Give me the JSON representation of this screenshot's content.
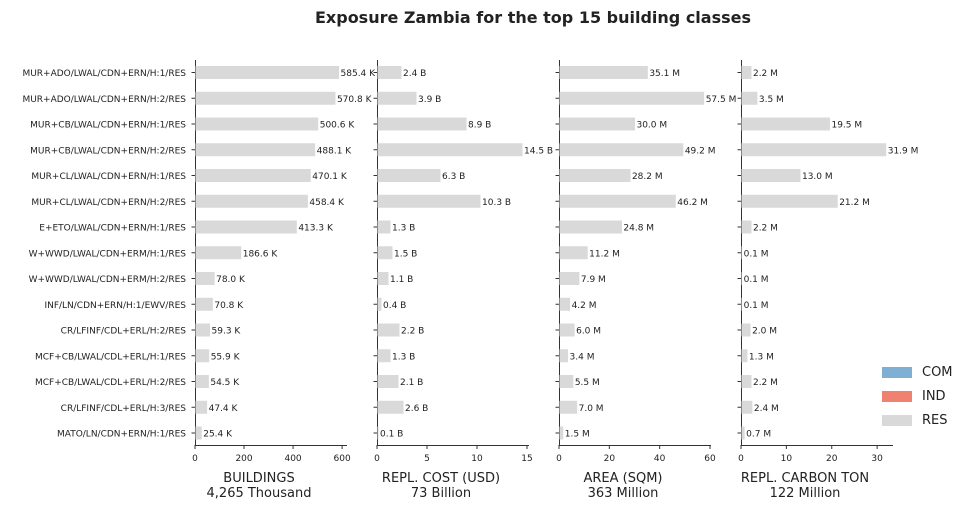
{
  "chart_data": {
    "type": "bar",
    "orientation": "horizontal",
    "title": "Exposure Zambia for the top 15 building classes",
    "categories": [
      "MUR+ADO/LWAL/CDN+ERN/H:1/RES",
      "MUR+ADO/LWAL/CDN+ERN/H:2/RES",
      "MUR+CB/LWAL/CDN+ERN/H:1/RES",
      "MUR+CB/LWAL/CDN+ERN/H:2/RES",
      "MUR+CL/LWAL/CDN+ERN/H:1/RES",
      "MUR+CL/LWAL/CDN+ERN/H:2/RES",
      "E+ETO/LWAL/CDN+ERN/H:1/RES",
      "W+WWD/LWAL/CDN+ERM/H:1/RES",
      "W+WWD/LWAL/CDN+ERM/H:2/RES",
      "INF/LN/CDN+ERN/H:1/EWV/RES",
      "CR/LFINF/CDL+ERL/H:2/RES",
      "MCF+CB/LWAL/CDL+ERL/H:1/RES",
      "MCF+CB/LWAL/CDL+ERL/H:2/RES",
      "CR/LFINF/CDL+ERL/H:3/RES",
      "MATO/LN/CDN+ERN/H:1/RES"
    ],
    "legend": {
      "placement": "right",
      "entries": [
        {
          "name": "COM",
          "color": "#7fb0d3"
        },
        {
          "name": "IND",
          "color": "#f08070"
        },
        {
          "name": "RES",
          "color": "#d9d9d9"
        }
      ]
    },
    "panels": [
      {
        "xlabel": "BUILDINGS",
        "total": "4,265 Thousand",
        "xlim": [
          0,
          620
        ],
        "ticks": [
          0,
          200,
          400,
          600
        ],
        "series": [
          {
            "name": "RES",
            "values": [
              585.4,
              570.8,
              500.6,
              488.1,
              470.1,
              458.4,
              413.3,
              186.6,
              78.0,
              70.8,
              59.3,
              55.9,
              54.5,
              47.4,
              25.4
            ]
          }
        ],
        "value_labels": [
          "585.4 K",
          "570.8 K",
          "500.6 K",
          "488.1 K",
          "470.1 K",
          "458.4 K",
          "413.3 K",
          "186.6 K",
          "78.0 K",
          "70.8 K",
          "59.3 K",
          "55.9 K",
          "54.5 K",
          "47.4 K",
          "25.4 K"
        ]
      },
      {
        "xlabel": "REPL. COST (USD)",
        "total": "73 Billion",
        "xlim": [
          0,
          15.2
        ],
        "ticks": [
          0,
          5,
          10,
          15
        ],
        "series": [
          {
            "name": "RES",
            "values": [
              2.4,
              3.9,
              8.9,
              14.5,
              6.3,
              10.3,
              1.3,
              1.5,
              1.1,
              0.4,
              2.2,
              1.3,
              2.1,
              2.6,
              0.1
            ]
          }
        ],
        "value_labels": [
          "2.4 B",
          "3.9 B",
          "8.9 B",
          "14.5 B",
          "6.3 B",
          "10.3 B",
          "1.3 B",
          "1.5 B",
          "1.1 B",
          "0.4 B",
          "2.2 B",
          "1.3 B",
          "2.1 B",
          "2.6 B",
          "0.1 B"
        ]
      },
      {
        "xlabel": "AREA (SQM)",
        "total": "363 Million",
        "xlim": [
          0,
          60.4
        ],
        "ticks": [
          0,
          20,
          40,
          60
        ],
        "series": [
          {
            "name": "RES",
            "values": [
              35.1,
              57.5,
              30.0,
              49.2,
              28.2,
              46.2,
              24.8,
              11.2,
              7.9,
              4.2,
              6.0,
              3.4,
              5.5,
              7.0,
              1.5
            ]
          }
        ],
        "value_labels": [
          "35.1 M",
          "57.5 M",
          "30.0 M",
          "49.2 M",
          "28.2 M",
          "46.2 M",
          "24.8 M",
          "11.2 M",
          "7.9 M",
          "4.2 M",
          "6.0 M",
          "3.4 M",
          "5.5 M",
          "7.0 M",
          "1.5 M"
        ]
      },
      {
        "xlabel": "REPL. CARBON TON",
        "total": "122 Million",
        "xlim": [
          0,
          33.5
        ],
        "ticks": [
          0,
          10,
          20,
          30
        ],
        "series": [
          {
            "name": "RES",
            "values": [
              2.2,
              3.5,
              19.5,
              31.9,
              13.0,
              21.2,
              2.2,
              0.1,
              0.1,
              0.1,
              2.0,
              1.3,
              2.2,
              2.4,
              0.7
            ]
          }
        ],
        "value_labels": [
          "2.2 M",
          "3.5 M",
          "19.5 M",
          "31.9 M",
          "13.0 M",
          "21.2 M",
          "2.2 M",
          "0.1 M",
          "0.1 M",
          "0.1 M",
          "2.0 M",
          "1.3 M",
          "2.2 M",
          "2.4 M",
          "0.7 M"
        ]
      }
    ]
  }
}
